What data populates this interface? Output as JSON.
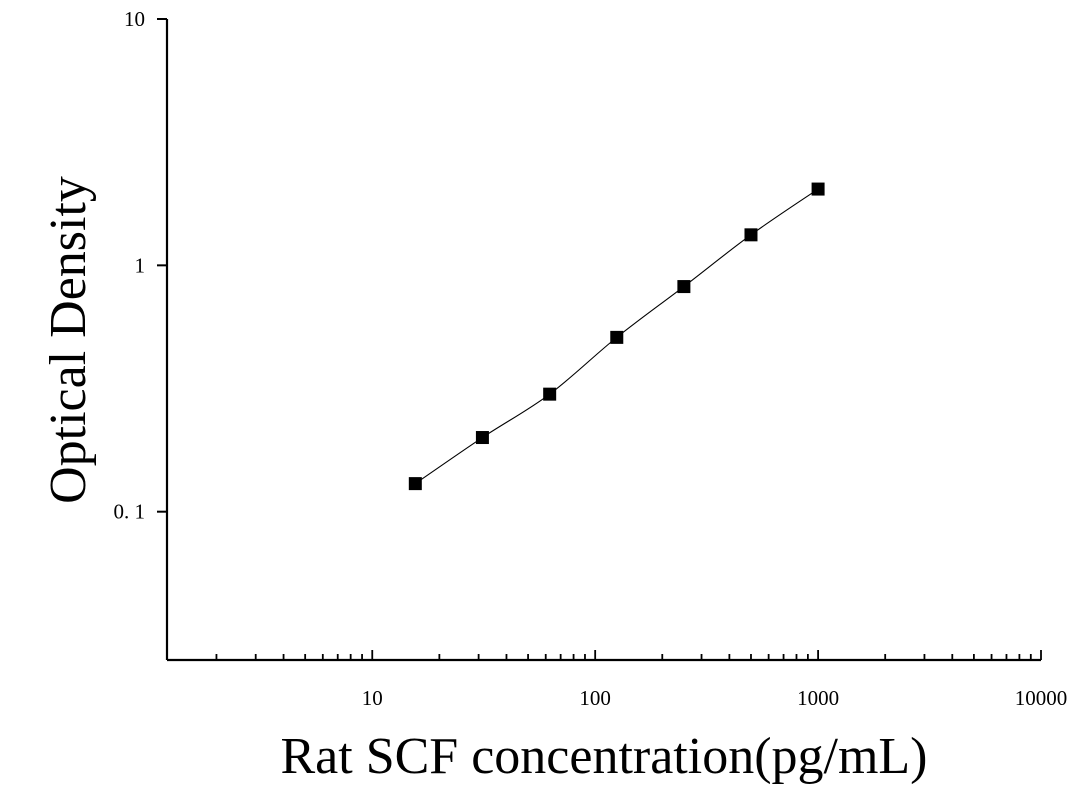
{
  "chart_data": {
    "type": "scatter",
    "title": "",
    "xlabel": "Rat SCF concentration(pg/mL)",
    "ylabel": "Optical Density",
    "x_scale": "log",
    "y_scale": "log",
    "xlim": [
      1.2,
      10000
    ],
    "ylim": [
      0.025,
      10
    ],
    "x_ticks": [
      {
        "value": 10,
        "label": "10"
      },
      {
        "value": 100,
        "label": "100"
      },
      {
        "value": 1000,
        "label": "1000"
      },
      {
        "value": 10000,
        "label": "10000"
      }
    ],
    "y_ticks": [
      {
        "value": 0.1,
        "label": "0. 1"
      },
      {
        "value": 1,
        "label": "1"
      },
      {
        "value": 10,
        "label": "10"
      }
    ],
    "grid": false,
    "legend": "none",
    "series": [
      {
        "marker": "square",
        "fit_line": true,
        "color": "#000000",
        "x": [
          15.6,
          31.2,
          62.5,
          125,
          250,
          500,
          1000
        ],
        "y": [
          0.13,
          0.2,
          0.3,
          0.51,
          0.82,
          1.33,
          2.04
        ]
      }
    ]
  }
}
